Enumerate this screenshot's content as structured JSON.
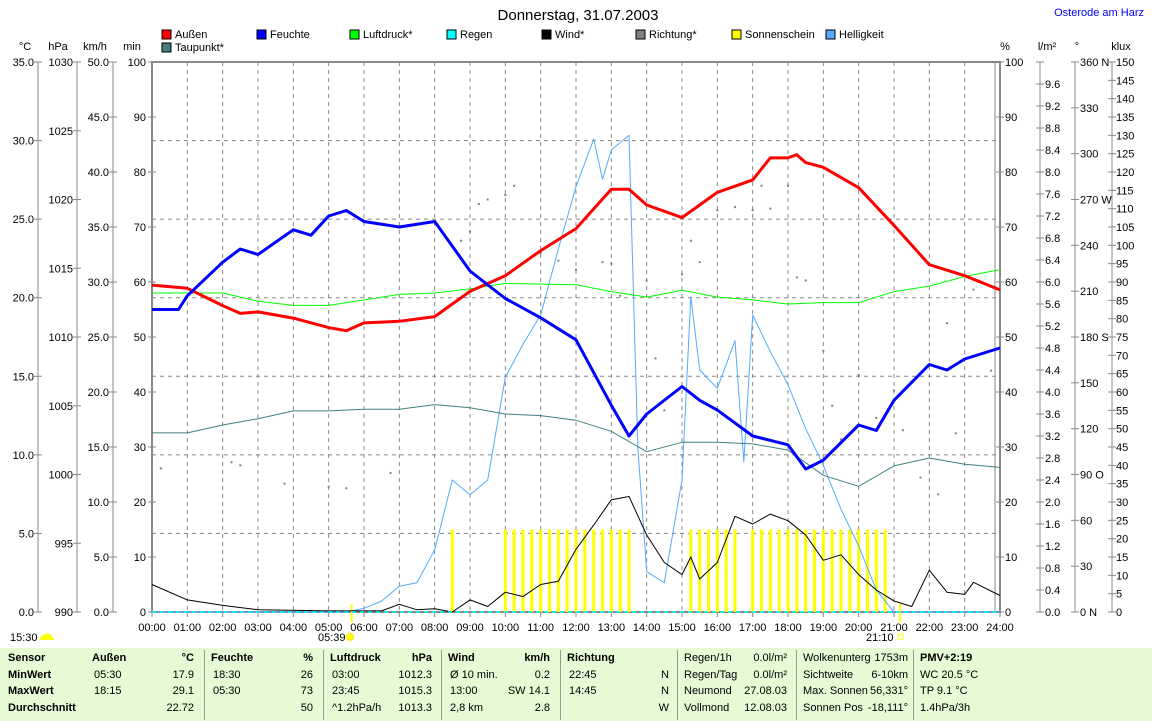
{
  "header": {
    "title": "Donnerstag, 31.07.2003",
    "location": "Osterode am Harz"
  },
  "legend": [
    {
      "label": "Außen",
      "color": "#ff0000"
    },
    {
      "label": "Feuchte",
      "color": "#0000ff"
    },
    {
      "label": "Luftdruck*",
      "color": "#00ff00"
    },
    {
      "label": "Regen",
      "color": "#00ffff"
    },
    {
      "label": "Wind*",
      "color": "#000000"
    },
    {
      "label": "Richtung*",
      "color": "#808080"
    },
    {
      "label": "Sonnenschein",
      "color": "#ffff00"
    },
    {
      "label": "Helligkeit",
      "color": "#55aaff"
    },
    {
      "label": "Taupunkt*",
      "color": "#408080"
    }
  ],
  "axes": {
    "temp": {
      "unit": "°C",
      "min": 0,
      "max": 35,
      "step": 5,
      "dec": 1
    },
    "press": {
      "unit": "hPa",
      "min": 990,
      "max": 1030,
      "step": 5,
      "dec": 0
    },
    "wind": {
      "unit": "km/h",
      "min": 0,
      "max": 50,
      "step": 5,
      "dec": 1
    },
    "sunmin": {
      "unit": "min",
      "min": 0,
      "max": 100,
      "step": 10,
      "dec": 0
    },
    "hum": {
      "unit": "%",
      "min": 0,
      "max": 100,
      "step": 10,
      "dec": 0
    },
    "rain": {
      "unit": "l/m²",
      "min": 0,
      "max": 10,
      "step": 0.4,
      "dec": 1
    },
    "dir": {
      "unit": "°",
      "min": 0,
      "max": 360,
      "step": 30,
      "dec": 0,
      "compass": {
        "0": "N",
        "90": "O",
        "180": "S",
        "270": "W",
        "360": "N"
      }
    },
    "lux": {
      "unit": "klux",
      "min": 0,
      "max": 150,
      "step": 5,
      "dec": 0
    }
  },
  "chart_data": {
    "type": "line",
    "title": "Donnerstag, 31.07.2003",
    "x_ticks": [
      "00:00",
      "01:00",
      "02:00",
      "03:00",
      "04:00",
      "05:00",
      "06:00",
      "07:00",
      "08:00",
      "09:00",
      "10:00",
      "11:00",
      "12:00",
      "13:00",
      "14:00",
      "15:00",
      "16:00",
      "17:00",
      "18:00",
      "19:00",
      "20:00",
      "21:00",
      "22:00",
      "23:00",
      "24:00"
    ],
    "xlim": [
      0,
      24
    ],
    "series": [
      {
        "name": "Helligkeit",
        "axis": "lux",
        "color": "#55aaff",
        "points": [
          [
            0,
            0
          ],
          [
            5.5,
            0
          ],
          [
            6,
            1
          ],
          [
            6.5,
            3
          ],
          [
            7,
            7
          ],
          [
            7.5,
            8
          ],
          [
            8,
            17
          ],
          [
            8.5,
            36
          ],
          [
            9,
            32
          ],
          [
            9.5,
            36
          ],
          [
            10,
            64
          ],
          [
            10.5,
            73
          ],
          [
            11,
            81
          ],
          [
            11.5,
            99
          ],
          [
            12,
            116
          ],
          [
            12.5,
            129
          ],
          [
            12.75,
            118
          ],
          [
            13,
            126
          ],
          [
            13.5,
            130
          ],
          [
            13.75,
            45
          ],
          [
            14,
            11
          ],
          [
            14.5,
            8
          ],
          [
            15,
            36
          ],
          [
            15.25,
            86
          ],
          [
            15.5,
            66
          ],
          [
            16,
            61
          ],
          [
            16.5,
            74
          ],
          [
            16.75,
            41
          ],
          [
            17,
            81
          ],
          [
            17.5,
            71
          ],
          [
            18,
            62
          ],
          [
            18.5,
            50
          ],
          [
            19,
            40
          ],
          [
            19.5,
            28
          ],
          [
            20,
            18
          ],
          [
            20.5,
            6
          ],
          [
            21,
            0
          ],
          [
            24,
            0
          ]
        ]
      },
      {
        "name": "Taupunkt*",
        "axis": "temp",
        "color": "#408080",
        "points": [
          [
            0,
            11.4
          ],
          [
            1,
            11.4
          ],
          [
            2,
            11.9
          ],
          [
            3,
            12.3
          ],
          [
            4,
            12.8
          ],
          [
            5,
            12.8
          ],
          [
            6,
            12.9
          ],
          [
            7,
            12.9
          ],
          [
            8,
            13.2
          ],
          [
            9,
            13.0
          ],
          [
            10,
            12.6
          ],
          [
            11,
            12.5
          ],
          [
            12,
            12.2
          ],
          [
            13,
            11.5
          ],
          [
            14,
            10.2
          ],
          [
            15,
            10.8
          ],
          [
            16,
            10.8
          ],
          [
            17,
            10.7
          ],
          [
            18,
            10.3
          ],
          [
            19,
            8.7
          ],
          [
            20,
            8.0
          ],
          [
            21,
            9.3
          ],
          [
            22,
            9.8
          ],
          [
            23,
            9.4
          ],
          [
            24,
            9.2
          ]
        ]
      },
      {
        "name": "Luftdruck*",
        "axis": "press",
        "color": "#00ff00",
        "points": [
          [
            0,
            1013.2
          ],
          [
            2,
            1013.2
          ],
          [
            3,
            1012.6
          ],
          [
            4,
            1012.3
          ],
          [
            5,
            1012.3
          ],
          [
            6,
            1012.7
          ],
          [
            7,
            1013.1
          ],
          [
            8,
            1013.2
          ],
          [
            9,
            1013.5
          ],
          [
            10,
            1013.9
          ],
          [
            12,
            1013.8
          ],
          [
            13,
            1013.3
          ],
          [
            14,
            1012.9
          ],
          [
            15,
            1013.4
          ],
          [
            16,
            1012.9
          ],
          [
            17,
            1012.7
          ],
          [
            18,
            1012.4
          ],
          [
            19,
            1012.5
          ],
          [
            20,
            1012.5
          ],
          [
            21,
            1013.3
          ],
          [
            22,
            1013.7
          ],
          [
            23,
            1014.4
          ],
          [
            24,
            1014.9
          ]
        ]
      },
      {
        "name": "Wind*",
        "axis": "wind",
        "color": "#000000",
        "points": [
          [
            0,
            2.5
          ],
          [
            1,
            1.1
          ],
          [
            2,
            0.6
          ],
          [
            3,
            0.2
          ],
          [
            5,
            0.1
          ],
          [
            6.5,
            0.1
          ],
          [
            7,
            0.7
          ],
          [
            7.5,
            0.2
          ],
          [
            8,
            0.3
          ],
          [
            8.5,
            0
          ],
          [
            9,
            1.1
          ],
          [
            9.5,
            0.5
          ],
          [
            10,
            1.8
          ],
          [
            10.5,
            1.4
          ],
          [
            11,
            2.5
          ],
          [
            11.5,
            2.8
          ],
          [
            12,
            5.7
          ],
          [
            12.5,
            7.9
          ],
          [
            13,
            10.2
          ],
          [
            13.5,
            10.5
          ],
          [
            14,
            7.0
          ],
          [
            14.5,
            4.5
          ],
          [
            15,
            3.4
          ],
          [
            15.25,
            5.0
          ],
          [
            15.5,
            3.0
          ],
          [
            16,
            4.5
          ],
          [
            16.5,
            8.7
          ],
          [
            17,
            8.0
          ],
          [
            17.5,
            8.9
          ],
          [
            18,
            8.3
          ],
          [
            18.5,
            7.0
          ],
          [
            19,
            4.7
          ],
          [
            19.5,
            5.2
          ],
          [
            20,
            3.4
          ],
          [
            20.5,
            2.0
          ],
          [
            21,
            1.0
          ],
          [
            21.5,
            0.5
          ],
          [
            22,
            3.8
          ],
          [
            22.5,
            1.8
          ],
          [
            23,
            1.6
          ],
          [
            23.25,
            2.7
          ],
          [
            24,
            1.5
          ]
        ]
      },
      {
        "name": "Außen",
        "axis": "temp",
        "color": "#ff0000",
        "points": [
          [
            0,
            20.8
          ],
          [
            1,
            20.6
          ],
          [
            2,
            19.5
          ],
          [
            2.5,
            19.0
          ],
          [
            3,
            19.1
          ],
          [
            4,
            18.7
          ],
          [
            5,
            18.1
          ],
          [
            5.5,
            17.9
          ],
          [
            6,
            18.4
          ],
          [
            7,
            18.5
          ],
          [
            8,
            18.8
          ],
          [
            9,
            20.4
          ],
          [
            10,
            21.4
          ],
          [
            11,
            23.0
          ],
          [
            12,
            24.4
          ],
          [
            13,
            26.9
          ],
          [
            13.5,
            26.9
          ],
          [
            14,
            25.9
          ],
          [
            15,
            25.1
          ],
          [
            16,
            26.7
          ],
          [
            17,
            27.5
          ],
          [
            17.5,
            28.9
          ],
          [
            18,
            28.9
          ],
          [
            18.25,
            29.1
          ],
          [
            18.5,
            28.6
          ],
          [
            19,
            28.3
          ],
          [
            20,
            27.0
          ],
          [
            21,
            24.6
          ],
          [
            22,
            22.1
          ],
          [
            23,
            21.4
          ],
          [
            24,
            20.5
          ]
        ]
      },
      {
        "name": "Feuchte",
        "axis": "hum",
        "color": "#0000ff",
        "points": [
          [
            0,
            55
          ],
          [
            0.75,
            55
          ],
          [
            1,
            57.5
          ],
          [
            2,
            63.6
          ],
          [
            2.5,
            66
          ],
          [
            3,
            65
          ],
          [
            4,
            69.5
          ],
          [
            4.5,
            68.5
          ],
          [
            5,
            72
          ],
          [
            5.5,
            73
          ],
          [
            6,
            71
          ],
          [
            7,
            70
          ],
          [
            8,
            71
          ],
          [
            9,
            62
          ],
          [
            10,
            57
          ],
          [
            11,
            53.5
          ],
          [
            12,
            49.5
          ],
          [
            13,
            37.6
          ],
          [
            13.5,
            32
          ],
          [
            14,
            36
          ],
          [
            15,
            41
          ],
          [
            15.5,
            38.5
          ],
          [
            16,
            36.7
          ],
          [
            17,
            32
          ],
          [
            18,
            30.4
          ],
          [
            18.5,
            26
          ],
          [
            19,
            27.6
          ],
          [
            20,
            34
          ],
          [
            20.5,
            33
          ],
          [
            21,
            38.5
          ],
          [
            22,
            45
          ],
          [
            22.5,
            44
          ],
          [
            23,
            46
          ],
          [
            24,
            48
          ]
        ]
      },
      {
        "name": "Regen",
        "axis": "rain",
        "color": "#00ffff",
        "points": [
          [
            0,
            0
          ],
          [
            24,
            0
          ]
        ]
      }
    ],
    "richtung_deg": [
      [
        0.25,
        94
      ],
      [
        2.25,
        98
      ],
      [
        2.5,
        96
      ],
      [
        3.75,
        84
      ],
      [
        5,
        82
      ],
      [
        5.5,
        81
      ],
      [
        6.75,
        91
      ],
      [
        8.75,
        243
      ],
      [
        9,
        249
      ],
      [
        9.25,
        267
      ],
      [
        9.5,
        270
      ],
      [
        10,
        273
      ],
      [
        10.25,
        279
      ],
      [
        11,
        235
      ],
      [
        11.5,
        230
      ],
      [
        12,
        224
      ],
      [
        12.75,
        229
      ],
      [
        13,
        228
      ],
      [
        13.25,
        207
      ],
      [
        14,
        217
      ],
      [
        14.25,
        166
      ],
      [
        14.5,
        132
      ],
      [
        15,
        221
      ],
      [
        15.25,
        243
      ],
      [
        15.5,
        229
      ],
      [
        16,
        263
      ],
      [
        16.5,
        265
      ],
      [
        17,
        263
      ],
      [
        17.25,
        279
      ],
      [
        17.5,
        264
      ],
      [
        18,
        279
      ],
      [
        18.25,
        219
      ],
      [
        18.5,
        217
      ],
      [
        19,
        171
      ],
      [
        19.25,
        135
      ],
      [
        19.5,
        113
      ],
      [
        20,
        155
      ],
      [
        20.5,
        127
      ],
      [
        21,
        145
      ],
      [
        21.25,
        119
      ],
      [
        21.75,
        88
      ],
      [
        22.25,
        77
      ],
      [
        22.5,
        189
      ],
      [
        22.75,
        117
      ],
      [
        23.25,
        211
      ],
      [
        23.75,
        158
      ]
    ],
    "sonnenschein_min": {
      "value": 15,
      "times": [
        8.5,
        10,
        10.25,
        10.5,
        10.75,
        11,
        11.25,
        11.5,
        11.75,
        12,
        12.25,
        12.5,
        12.75,
        13,
        13.25,
        13.5,
        15.25,
        15.5,
        15.75,
        16,
        16.25,
        16.5,
        17,
        17.25,
        17.5,
        17.75,
        18,
        18.25,
        18.5,
        18.75,
        19,
        19.25,
        19.5,
        19.75,
        20,
        20.25,
        20.5,
        20.75
      ]
    }
  },
  "astro": {
    "moon": "15:30",
    "sunrise": "05:39",
    "sunset": "21:10"
  },
  "table": {
    "rows_label": [
      "Sensor",
      "MinWert",
      "MaxWert",
      "Durchschnitt"
    ],
    "aussen": {
      "title": "Außen",
      "unit": "°C",
      "rows": [
        [
          "05:30",
          "17.9"
        ],
        [
          "18:15",
          "29.1"
        ],
        [
          "",
          "22.72"
        ]
      ]
    },
    "feuchte": {
      "title": "Feuchte",
      "unit": "%",
      "rows": [
        [
          "18:30",
          "26"
        ],
        [
          "05:30",
          "73"
        ],
        [
          "",
          "50"
        ]
      ]
    },
    "luftdruck": {
      "title": "Luftdruck",
      "unit": "hPa",
      "rows": [
        [
          "03:00",
          "1012.3"
        ],
        [
          "23:45",
          "1015.3"
        ],
        [
          "^1.2hPa/h",
          "1013.3"
        ]
      ]
    },
    "wind": {
      "title": "Wind",
      "unit": "km/h",
      "rows": [
        [
          "Ø 10 min.",
          "0.2"
        ],
        [
          "13:00",
          "SW 14.1"
        ],
        [
          "2,8 km",
          "2.8"
        ]
      ]
    },
    "richtung": {
      "title": "Richtung",
      "unit": "",
      "rows": [
        [
          "22:45",
          "N"
        ],
        [
          "14:45",
          "N"
        ],
        [
          "",
          "W"
        ]
      ]
    },
    "regen": [
      [
        "Regen/1h",
        "0.0l/m²"
      ],
      [
        "Regen/Tag",
        "0.0l/m²"
      ],
      [
        "Neumond",
        "27.08.03"
      ],
      [
        "Vollmond",
        "12.08.03"
      ]
    ],
    "wolken": [
      [
        "Wolkenunterg",
        "1753m"
      ],
      [
        "Sichtweite",
        "6-10km"
      ],
      [
        "Max. Sonnen",
        "56,331°"
      ],
      [
        "Sonnen Pos",
        "-18,111°"
      ]
    ],
    "pmv": [
      "PMV+2:19",
      "WC 20.5 °C",
      "TP 9.1 °C",
      "1.4hPa/3h"
    ]
  }
}
